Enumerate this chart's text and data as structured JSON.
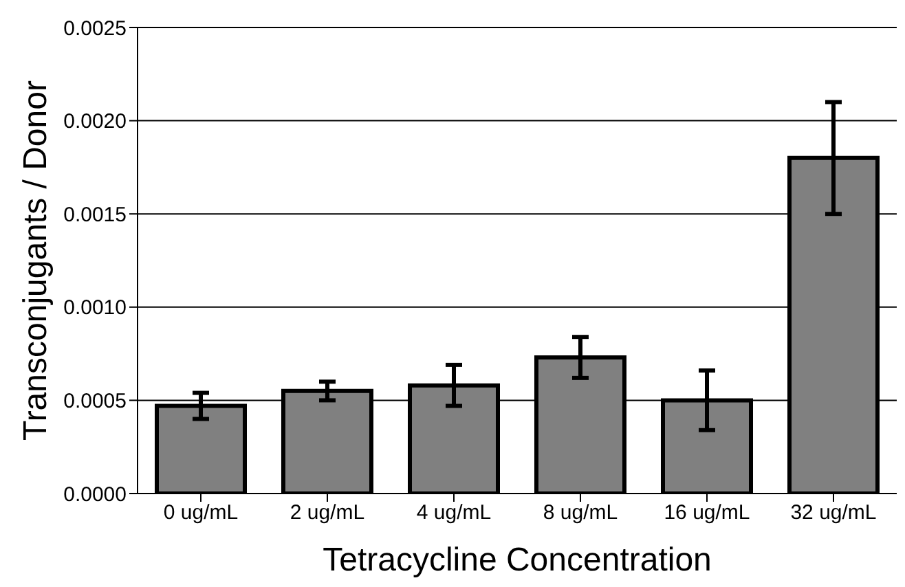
{
  "chart_data": {
    "type": "bar",
    "xlabel": "Tetracycline Concentration",
    "ylabel": "Transconjugants / Donor",
    "categories": [
      "0 ug/mL",
      "2 ug/mL",
      "4 ug/mL",
      "8 ug/mL",
      "16 ug/mL",
      "32 ug/mL"
    ],
    "values": [
      0.00047,
      0.00055,
      0.00058,
      0.00073,
      0.0005,
      0.0018
    ],
    "errors": [
      7e-05,
      5e-05,
      0.00011,
      0.00011,
      0.00016,
      0.0003
    ],
    "color": "#808080",
    "ylim": [
      0,
      0.0025
    ],
    "yticks": [
      {
        "value": 0,
        "label": "0.0000"
      },
      {
        "value": 0.0005,
        "label": "0.0005"
      },
      {
        "value": 0.001,
        "label": "0.0010"
      },
      {
        "value": 0.0015,
        "label": "0.0015"
      },
      {
        "value": 0.002,
        "label": "0.0020"
      },
      {
        "value": 0.0025,
        "label": "0.0025"
      }
    ],
    "grid": "y"
  }
}
